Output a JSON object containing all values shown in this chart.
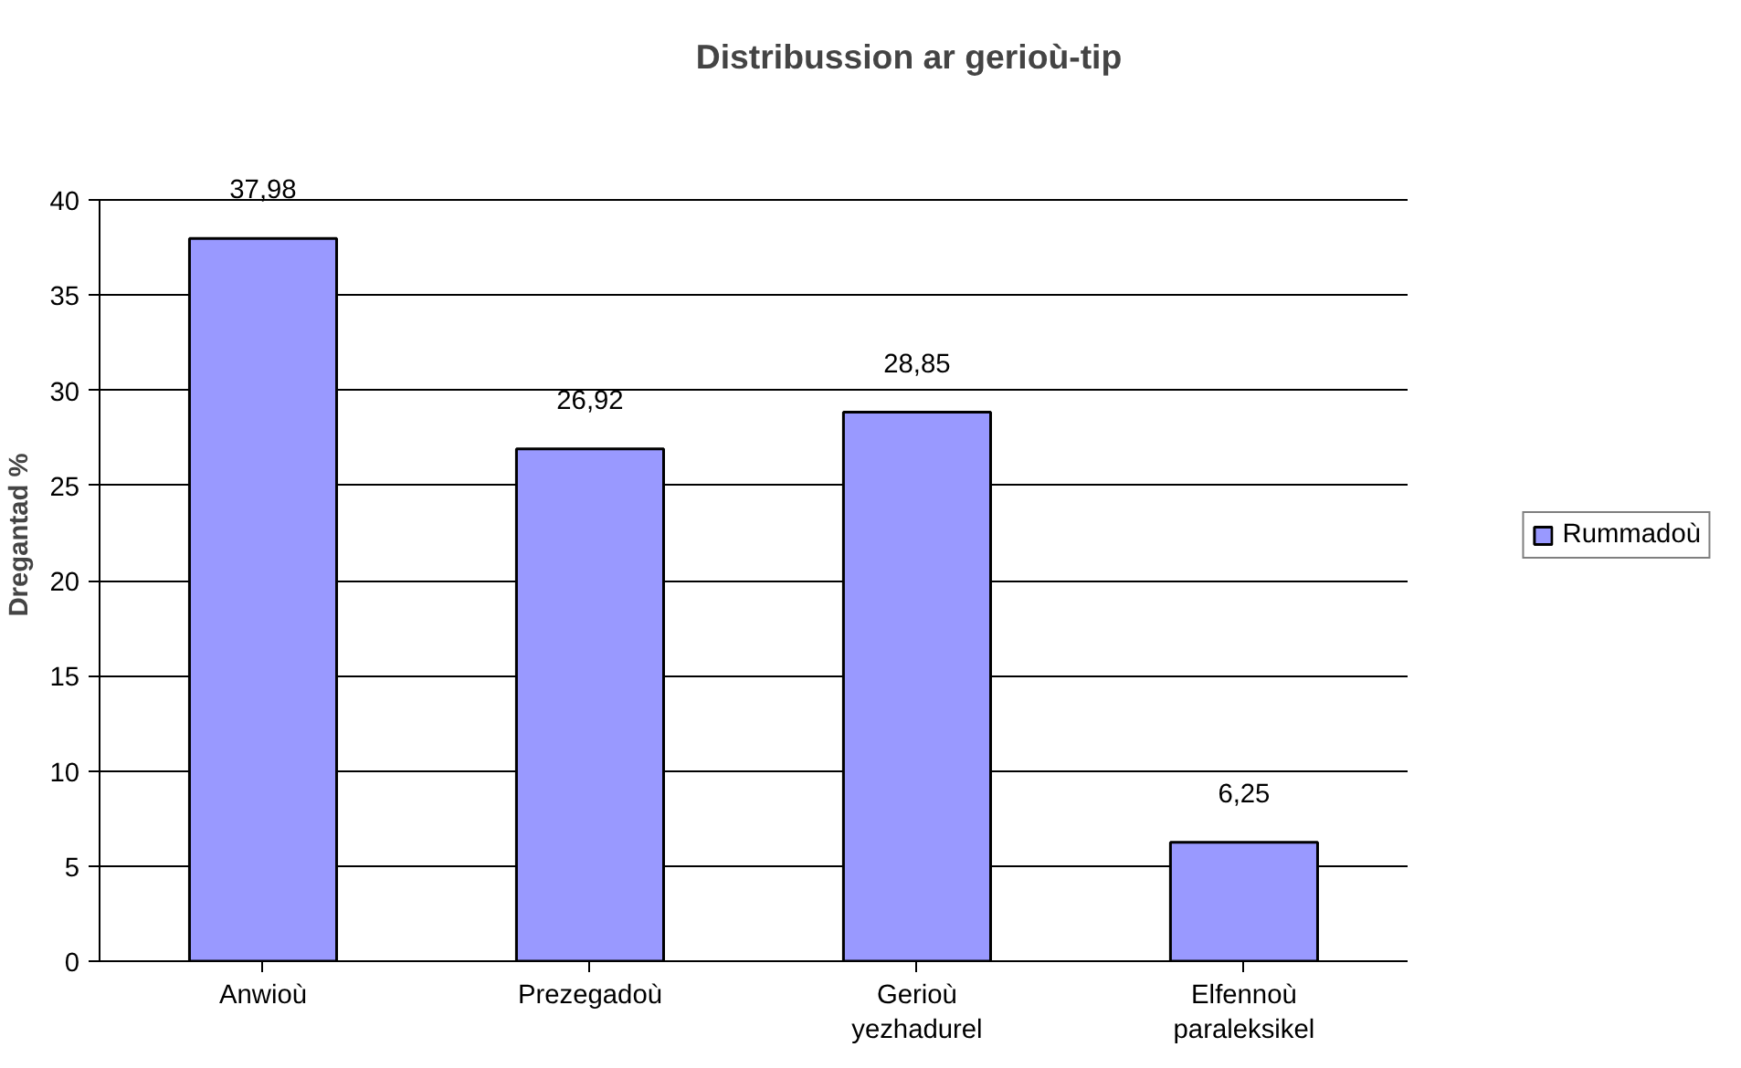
{
  "chart_data": {
    "type": "bar",
    "title": "Distribussion ar gerioù-tip",
    "ylabel": "Dregantad %",
    "categories": [
      "Anwioù",
      "Prezegadoù",
      "Gerioù yezhadurel",
      "Elfennoù paraleksikel"
    ],
    "series": [
      {
        "name": "Rummadoù",
        "color": "#9999ff",
        "values": [
          37.98,
          26.92,
          28.85,
          6.25
        ],
        "value_labels": [
          "37,98",
          "26,92",
          "28,85",
          "6,25"
        ]
      }
    ],
    "ylim": [
      0,
      40
    ],
    "yticks": [
      0,
      5,
      10,
      15,
      20,
      25,
      30,
      35,
      40
    ],
    "grid": "y",
    "legend": "right"
  }
}
